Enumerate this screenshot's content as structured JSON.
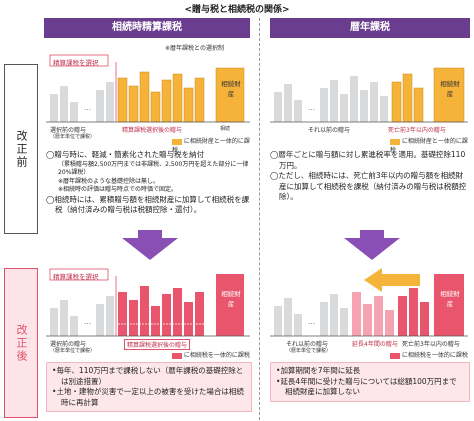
{
  "title": "<贈与税と相続税の関係>",
  "left_header": "相続時精算課税",
  "right_header": "暦年課税",
  "sidebar_before": "改正前",
  "sidebar_after": "改正後",
  "notes": {
    "left_top": "※暦年課税との選択制",
    "souzoku": "相続",
    "legend_gift": "に相続財産と一体的に課税",
    "legend_gift2": "に相続財産と一体的に課税",
    "legend_gift3": "に相続税を一体的に課税",
    "legend_gift4": "に相続税を一体的に課税"
  },
  "left_before": {
    "tag": "精算課税を選択",
    "label_prior": "選択前の贈与",
    "label_prior_sub": "（暦年単位で課税）",
    "label_after": "精算課税選択後の贈与",
    "estate": "相続財産",
    "bullets": [
      "贈与時に、軽減・簡素化された贈与税を納付",
      "（累積贈与額2,500万円までは非課税、2,500万円を超えた部分に一律20%課税）",
      "※暦年課税のような基礎控除は無し。",
      "※相続時の評価は贈与時点での時価で固定。",
      "相続時には、累積贈与額を相続財産に加算して相続税を課税（納付済みの贈与税は税額控除・還付）。"
    ]
  },
  "right_before": {
    "label_prior": "それ以前の贈与",
    "label_within": "死亡前3年以内の贈与",
    "estate": "相続財産",
    "bullets": [
      "暦年ごとに贈与額に対し累進税率を適用。基礎控除110万円。",
      "ただし、相続時には、死亡前3年以内の贈与額を相続財産に加算して相続税を課税（納付済みの贈与税は税額控除）。"
    ]
  },
  "left_after": {
    "tag": "精算課税を選択",
    "label_prior": "選択前の贈与",
    "label_prior_sub": "（暦年単位で課税）",
    "label_after": "精算課税選択後の贈与",
    "estate": "相続財産",
    "box": [
      "毎年、110万円まで課税しない（暦年課税の基礎控除とは別途措置）",
      "土地・建物が災害で一定以上の被害を受けた場合は相続時に再計算"
    ]
  },
  "right_after": {
    "label_prior": "それ以前の贈与",
    "label_prior_sub": "（暦年単位で課税）",
    "label_ext": "延長4年間の贈与",
    "label_within": "死亡前3年以内の贈与",
    "estate": "相続財産",
    "box": [
      "加算期間を7年間に延長",
      "延長4年間に受けた贈与については総額100万円まで相続財産に加算しない"
    ]
  },
  "colors": {
    "purple": "#6a3d8e",
    "purple_arrow": "#8a4fb5",
    "orange": "#f6b33a",
    "gray_bar": "#d9dadb",
    "pink_bar": "#e8556c",
    "light_pink": "#fde7ea",
    "pink_line": "#e0506a"
  }
}
